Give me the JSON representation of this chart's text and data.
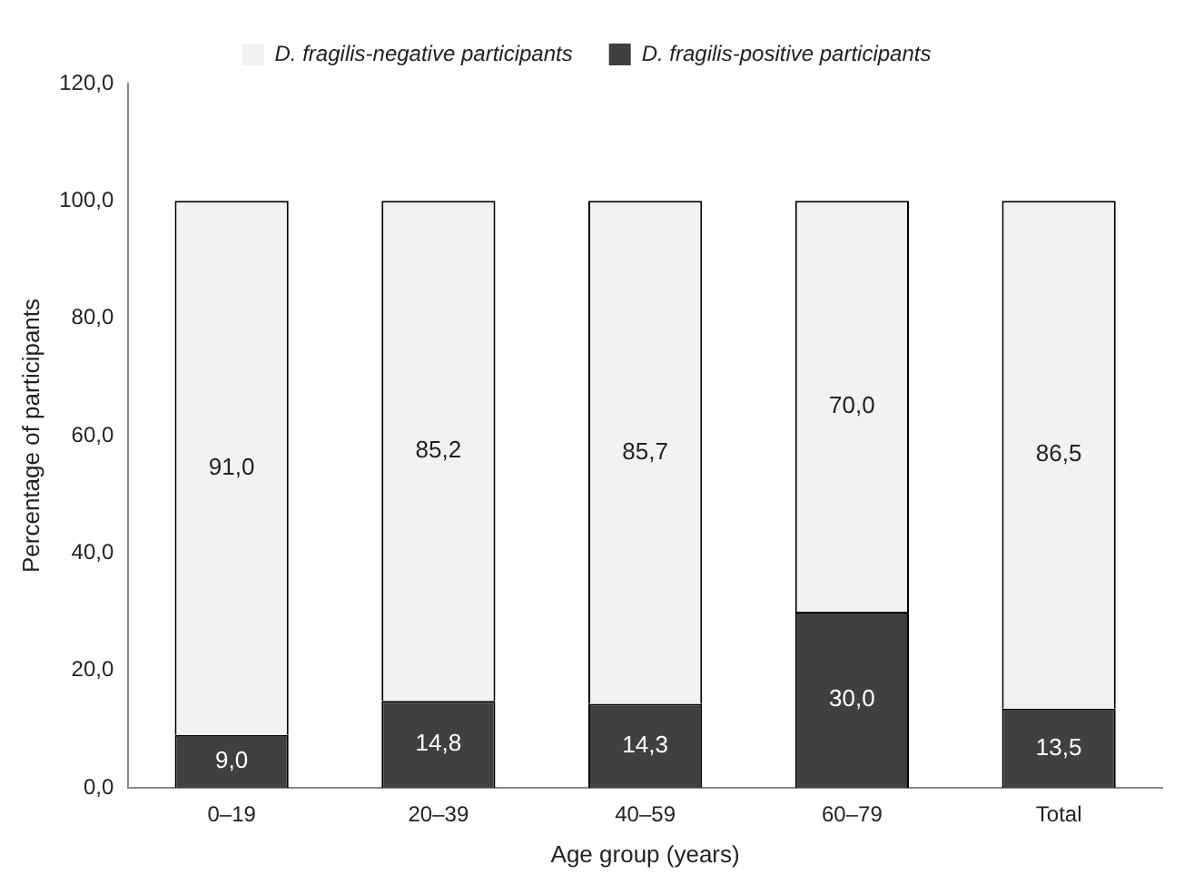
{
  "chart_data": {
    "type": "bar",
    "stacked": true,
    "xlabel": "Age group (years)",
    "ylabel": "Percentage of participants",
    "categories": [
      "0–19",
      "20–39",
      "40–59",
      "60–79",
      "Total"
    ],
    "series": [
      {
        "name": "D. fragilis-positive participants",
        "color": "#404040",
        "values": [
          9.0,
          14.8,
          14.3,
          30.0,
          13.5
        ],
        "value_labels": [
          "9,0",
          "14,8",
          "14,3",
          "30,0",
          "13,5"
        ]
      },
      {
        "name": "D. fragilis-negative participants",
        "color": "#f2f2f2",
        "values": [
          91.0,
          85.2,
          85.7,
          70.0,
          86.5
        ],
        "value_labels": [
          "91,0",
          "85,2",
          "85,7",
          "70,0",
          "86,5"
        ]
      }
    ],
    "ylim": [
      0,
      120
    ],
    "yticks": [
      {
        "value": 0,
        "label": "0,0"
      },
      {
        "value": 20,
        "label": "20,0"
      },
      {
        "value": 40,
        "label": "40,0"
      },
      {
        "value": 60,
        "label": "60,0"
      },
      {
        "value": 80,
        "label": "80,0"
      },
      {
        "value": 100,
        "label": "100,0"
      },
      {
        "value": 120,
        "label": "120,0"
      }
    ],
    "grid": false,
    "legend": "top"
  }
}
